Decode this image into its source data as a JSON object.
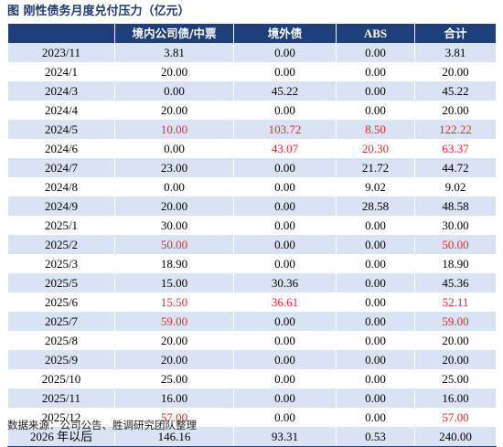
{
  "title": "图 刚性债务月度兑付压力（亿元）",
  "source": "数据来源：公司公告、胜调研究团队整理",
  "colors": {
    "header_bg": "#1f3f79",
    "stripe": "#dae3f3",
    "highlight": "#e8262b"
  },
  "headers": [
    "",
    "境内公司债/中票",
    "境外债",
    "ABS",
    "合计"
  ],
  "rows": [
    {
      "period": "2023/11",
      "cells": [
        "3.81",
        "0.00",
        "0.00",
        "3.81"
      ],
      "red": [
        false,
        false,
        false,
        false
      ]
    },
    {
      "period": "2024/1",
      "cells": [
        "20.00",
        "0.00",
        "0.00",
        "20.00"
      ],
      "red": [
        false,
        false,
        false,
        false
      ]
    },
    {
      "period": "2024/3",
      "cells": [
        "0.00",
        "45.22",
        "0.00",
        "45.22"
      ],
      "red": [
        false,
        false,
        false,
        false
      ]
    },
    {
      "period": "2024/4",
      "cells": [
        "20.00",
        "0.00",
        "0.00",
        "20.00"
      ],
      "red": [
        false,
        false,
        false,
        false
      ]
    },
    {
      "period": "2024/5",
      "cells": [
        "10.00",
        "103.72",
        "8.50",
        "122.22"
      ],
      "red": [
        true,
        true,
        true,
        true
      ]
    },
    {
      "period": "2024/6",
      "cells": [
        "0.00",
        "43.07",
        "20.30",
        "63.37"
      ],
      "red": [
        false,
        true,
        true,
        true
      ]
    },
    {
      "period": "2024/7",
      "cells": [
        "23.00",
        "0.00",
        "21.72",
        "44.72"
      ],
      "red": [
        false,
        false,
        false,
        false
      ]
    },
    {
      "period": "2024/8",
      "cells": [
        "0.00",
        "0.00",
        "9.02",
        "9.02"
      ],
      "red": [
        false,
        false,
        false,
        false
      ]
    },
    {
      "period": "2024/9",
      "cells": [
        "20.00",
        "0.00",
        "28.58",
        "48.58"
      ],
      "red": [
        false,
        false,
        false,
        false
      ]
    },
    {
      "period": "2025/1",
      "cells": [
        "30.00",
        "0.00",
        "0.00",
        "30.00"
      ],
      "red": [
        false,
        false,
        false,
        false
      ]
    },
    {
      "period": "2025/2",
      "cells": [
        "50.00",
        "0.00",
        "0.00",
        "50.00"
      ],
      "red": [
        true,
        false,
        false,
        true
      ]
    },
    {
      "period": "2025/3",
      "cells": [
        "18.90",
        "0.00",
        "0.00",
        "18.90"
      ],
      "red": [
        false,
        false,
        false,
        false
      ]
    },
    {
      "period": "2025/5",
      "cells": [
        "15.00",
        "30.36",
        "0.00",
        "45.36"
      ],
      "red": [
        false,
        false,
        false,
        false
      ]
    },
    {
      "period": "2025/6",
      "cells": [
        "15.50",
        "36.61",
        "0.00",
        "52.11"
      ],
      "red": [
        true,
        true,
        false,
        true
      ]
    },
    {
      "period": "2025/7",
      "cells": [
        "59.00",
        "0.00",
        "0.00",
        "59.00"
      ],
      "red": [
        true,
        false,
        false,
        true
      ]
    },
    {
      "period": "2025/8",
      "cells": [
        "20.00",
        "0.00",
        "0.00",
        "20.00"
      ],
      "red": [
        false,
        false,
        false,
        false
      ]
    },
    {
      "period": "2025/9",
      "cells": [
        "20.00",
        "0.00",
        "0.00",
        "20.00"
      ],
      "red": [
        false,
        false,
        false,
        false
      ]
    },
    {
      "period": "2025/10",
      "cells": [
        "25.00",
        "0.00",
        "0.00",
        "25.00"
      ],
      "red": [
        false,
        false,
        false,
        false
      ]
    },
    {
      "period": "2025/11",
      "cells": [
        "16.00",
        "0.00",
        "0.00",
        "16.00"
      ],
      "red": [
        false,
        false,
        false,
        false
      ]
    },
    {
      "period": "2025/12",
      "cells": [
        "57.00",
        "0.00",
        "0.00",
        "57.00"
      ],
      "red": [
        true,
        false,
        false,
        true
      ]
    },
    {
      "period": "2026 年以后",
      "cells": [
        "146.16",
        "93.31",
        "0.53",
        "240.00"
      ],
      "red": [
        false,
        false,
        false,
        false
      ]
    }
  ]
}
